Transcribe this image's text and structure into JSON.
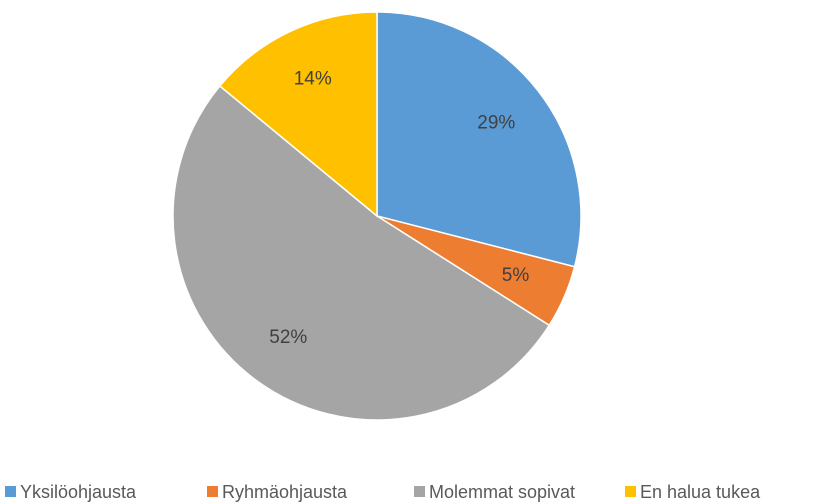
{
  "chart_data": {
    "type": "pie",
    "categories": [
      "Yksilöohjausta",
      "Ryhmäohjausta",
      "Molemmat sopivat",
      "En halua tukea"
    ],
    "values": [
      29,
      5,
      52,
      14
    ],
    "value_labels": [
      "29%",
      "5%",
      "52%",
      "14%"
    ],
    "colors": [
      "#5b9bd5",
      "#ed7d31",
      "#a5a5a5",
      "#ffc000"
    ],
    "legend": "bottom"
  }
}
